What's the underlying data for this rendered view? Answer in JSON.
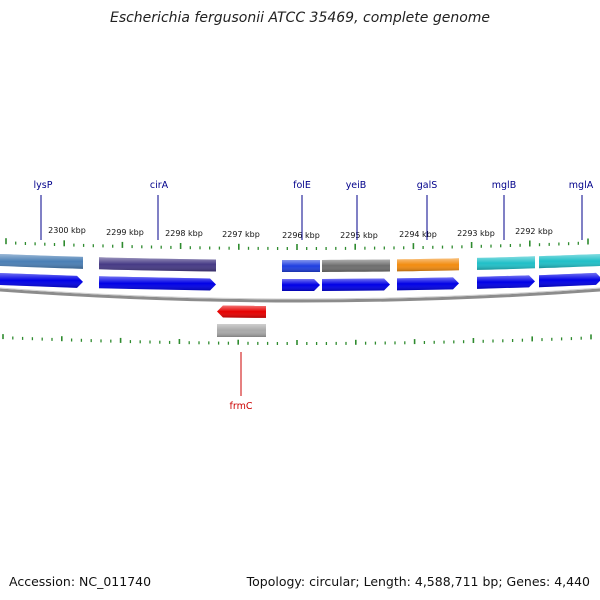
{
  "title": "Escherichia fergusonii ATCC 35469, complete genome",
  "accession": "Accession: NC_011740",
  "topology": "Topology: circular; Length: 4,588,711 bp; Genes: 4,440",
  "colors": {
    "tick": "#2e8b2e",
    "backbone": "#8c8c8c",
    "cds": "#0000e6",
    "forward_label": "#00008b",
    "reverse_label": "#cc0000",
    "reverse_cds": "#e60000"
  },
  "scale_labels": [
    "2300 kbp",
    "2299 kbp",
    "2298 kbp",
    "2297 kbp",
    "2296 kbp",
    "2295 kbp",
    "2294 kbp",
    "2293 kbp",
    "2292 kbp"
  ],
  "forward_genes": [
    {
      "name": "lysP",
      "gene_color": "#4a7fb5"
    },
    {
      "name": "cirA",
      "gene_color": "#463a85"
    },
    {
      "name": "folE",
      "gene_color": "#1f3fe0"
    },
    {
      "name": "yeiB",
      "gene_color": "#6e6e6e"
    },
    {
      "name": "galS",
      "gene_color": "#f28c10"
    },
    {
      "name": "mglB",
      "gene_color": "#20c0c8"
    },
    {
      "name": "mglA",
      "gene_color": "#20c0c8"
    }
  ],
  "reverse_genes": [
    {
      "name": "frmC",
      "gene_color": "#a9a9a9"
    }
  ]
}
